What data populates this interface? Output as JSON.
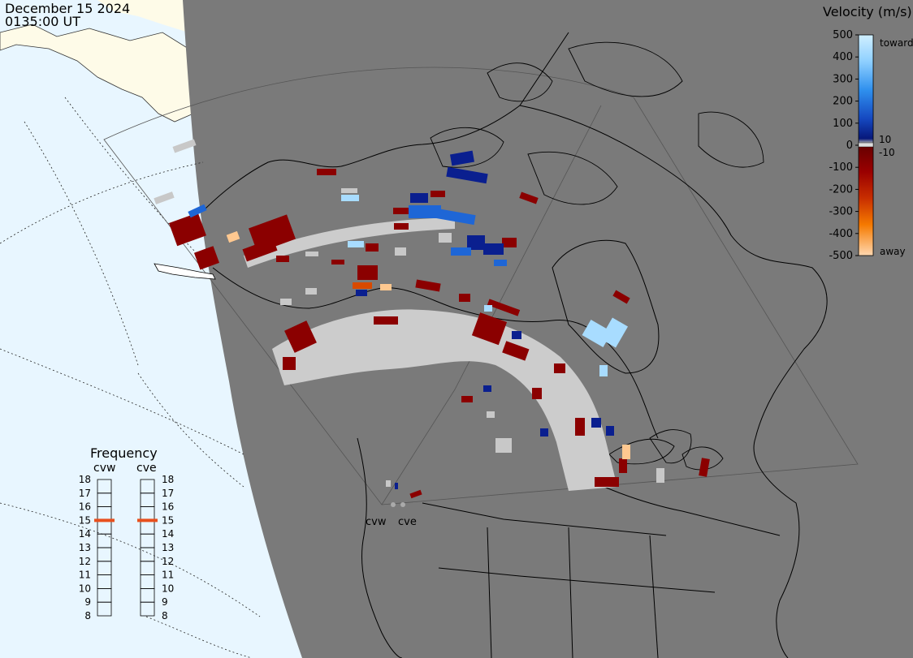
{
  "header": {
    "date": "December 15 2024",
    "time": "0135:00 UT"
  },
  "colors": {
    "ocean_day": "#e8f6ff",
    "land_day": "#fefbe8",
    "night": "#7a7a7a",
    "ground_scatter": "#cccccc",
    "away_strong": "#8b0000",
    "toward_strong": "#0a1f8f",
    "toward_mid": "#1e66d6",
    "toward_light": "#a8dcff",
    "away_light": "#ffcc99",
    "frequency_marker": "#e8501e"
  },
  "legend": {
    "title": "Velocity (m/s)",
    "ticks_left": [
      "500",
      "400",
      "300",
      "200",
      "100",
      "0",
      "-100",
      "-200",
      "-300",
      "-400",
      "-500"
    ],
    "label_10": "10",
    "label_minus10": "-10",
    "label_toward": "toward",
    "label_away": "away",
    "stops": [
      "#c8ecff",
      "#8fd0ff",
      "#3aa4f5",
      "#1f77e0",
      "#1650c4",
      "#0d2e9e",
      "#061570",
      "#aaaaaa",
      "#6e0000",
      "#9a0000",
      "#b82200",
      "#dc4a00",
      "#f57a00",
      "#ffa040",
      "#ffd0a0"
    ]
  },
  "frequency": {
    "title": "Frequency",
    "radars": [
      {
        "name": "cvw",
        "value": 15
      },
      {
        "name": "cve",
        "value": 15
      }
    ],
    "levels": [
      "18",
      "17",
      "16",
      "15",
      "14",
      "13",
      "12",
      "11",
      "10",
      "9",
      "8"
    ]
  },
  "map": {
    "radar_labels": [
      "cvw",
      "cve"
    ]
  }
}
